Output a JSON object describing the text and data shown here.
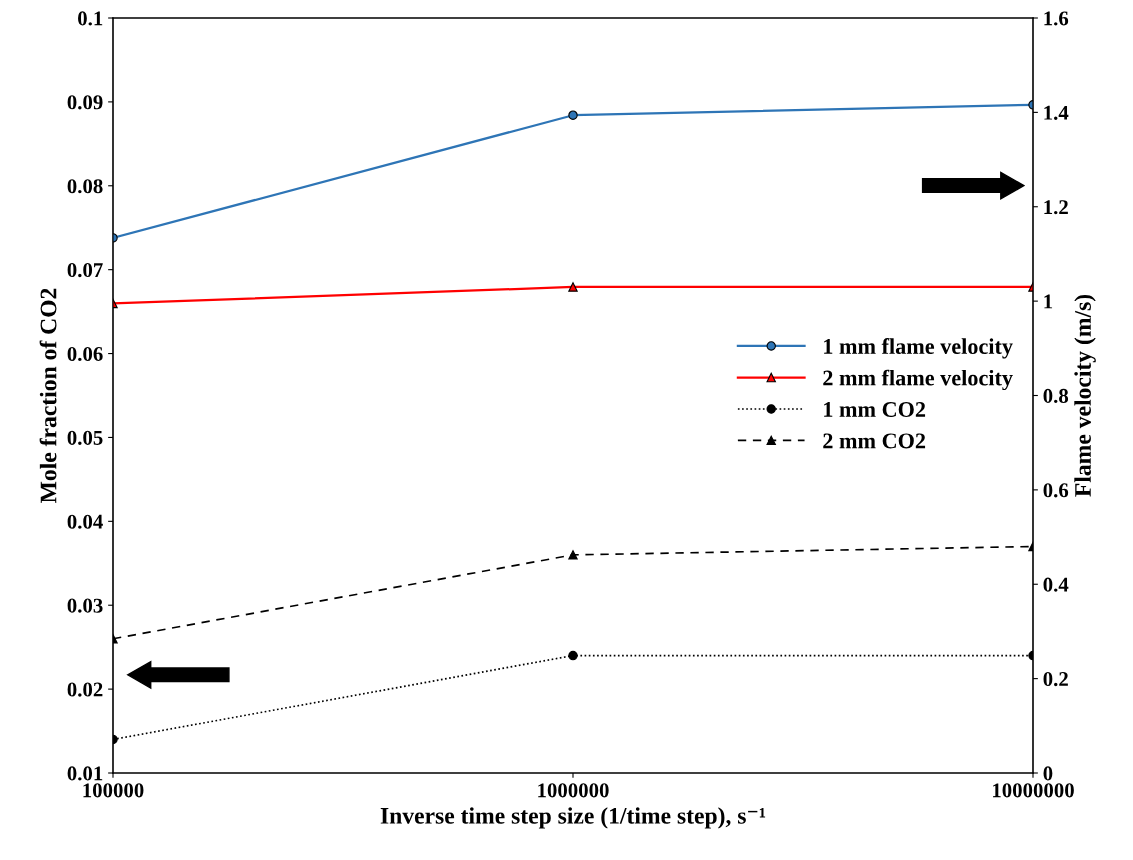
{
  "chart_data": {
    "type": "line",
    "xlabel": "Inverse time step size (1/time step), s⁻¹",
    "ylabel": "Mole fraction of CO2",
    "y2label": "Flame velocity (m/s)",
    "x": [
      100000,
      1000000,
      10000000
    ],
    "log": "x",
    "xlim": [
      100000,
      10000000
    ],
    "xticks": [
      100000,
      1000000,
      10000000
    ],
    "ylim": [
      0.01,
      0.1
    ],
    "yticks": [
      0.01,
      0.02,
      0.03,
      0.04,
      0.05,
      0.06,
      0.07,
      0.08,
      0.09,
      0.1
    ],
    "y2lim": [
      0,
      1.6
    ],
    "y2ticks": [
      0,
      0.2,
      0.4,
      0.6,
      0.8,
      1,
      1.2,
      1.4,
      1.6
    ],
    "grid": false,
    "legend": "right",
    "series": [
      {
        "name": "1 mm flame velocity",
        "color": "#2e75b6",
        "values": [
          1.134,
          1.394,
          1.416
        ],
        "axis": "y2",
        "marker": "circle",
        "line_style": "solid"
      },
      {
        "name": "2 mm flame velocity",
        "color": "#ff0000",
        "values": [
          0.995,
          1.03,
          1.03
        ],
        "axis": "y2",
        "marker": "triangle",
        "line_style": "solid"
      },
      {
        "name": "1 mm CO2",
        "color": "#000000",
        "values": [
          0.014,
          0.024,
          0.024
        ],
        "axis": "y",
        "marker": "circle",
        "line_style": "dotted"
      },
      {
        "name": "2 mm CO2",
        "color": "#000000",
        "values": [
          0.026,
          0.036,
          0.037
        ],
        "axis": "y",
        "marker": "triangle",
        "line_style": "dashed"
      }
    ]
  }
}
